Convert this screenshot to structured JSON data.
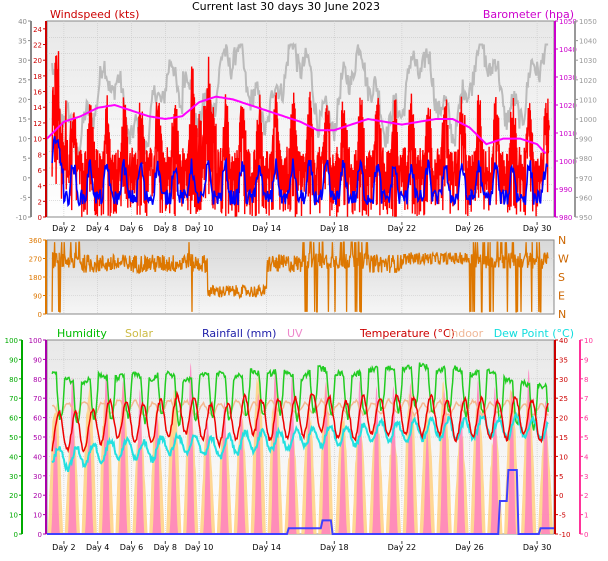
{
  "title": "Current last 30 days 30 June 2023",
  "colors": {
    "windspeed": "#ff0000",
    "gust": "#ff0000",
    "avgwind": "#0000ff",
    "barometer": "#ff00ff",
    "baro_bg_line": "#bbbbbb",
    "winddir": "#dd7700",
    "humidity": "#22cc22",
    "solar": "#ffd080",
    "rainfall": "#4040ff",
    "uv": "#ff80c0",
    "temperature": "#ee0000",
    "indoor": "#f4b890",
    "dewpoint": "#22e0e0",
    "axis_green": "#00aa00",
    "axis_orange": "#dd7700",
    "axis_pink": "#ff3399",
    "axis_red": "#cc0000",
    "axis_purple": "#aa00aa"
  },
  "chart_data": [
    {
      "type": "line",
      "name": "wind-baro",
      "series": [
        {
          "name": "Windspeed (kts)",
          "axis": "left"
        },
        {
          "name": "Barometer (hpa)",
          "axis": "right"
        }
      ],
      "left_axis": {
        "ylim": [
          0,
          25
        ],
        "ticks": [
          0,
          2,
          4,
          6,
          8,
          10,
          12,
          14,
          16,
          18,
          20,
          22,
          24
        ]
      },
      "left_axis2": {
        "ylim": [
          -10,
          40
        ],
        "ticks": [
          -10,
          -5,
          0,
          5,
          10,
          15,
          20,
          25,
          30,
          35,
          40
        ]
      },
      "right_axis": {
        "ylim": [
          980,
          1050
        ],
        "ticks": [
          980,
          990,
          1000,
          1010,
          1020,
          1030,
          1040,
          1050
        ]
      },
      "right_axis2": {
        "ylim": [
          950,
          1050
        ],
        "ticks": [
          950,
          960,
          970,
          980,
          990,
          1000,
          1010,
          1020,
          1030,
          1040,
          1050
        ]
      },
      "x_labels": [
        "Day 2",
        "Day 4",
        "Day 6",
        "Day 8",
        "Day 10",
        "Day 14",
        "Day 18",
        "Day 22",
        "Day 26",
        "Day 30"
      ],
      "x_days": [
        2,
        4,
        6,
        8,
        10,
        14,
        18,
        22,
        26,
        30
      ],
      "xlim": [
        1,
        31
      ],
      "barometer_points": [
        [
          1,
          1008
        ],
        [
          2,
          1014
        ],
        [
          3,
          1016
        ],
        [
          4,
          1019
        ],
        [
          5,
          1020
        ],
        [
          6,
          1018
        ],
        [
          7,
          1016
        ],
        [
          8,
          1015
        ],
        [
          9,
          1016
        ],
        [
          10,
          1021
        ],
        [
          11,
          1023
        ],
        [
          12,
          1022
        ],
        [
          13,
          1020
        ],
        [
          14,
          1018
        ],
        [
          15,
          1016
        ],
        [
          16,
          1014
        ],
        [
          17,
          1011
        ],
        [
          18,
          1011
        ],
        [
          19,
          1013
        ],
        [
          20,
          1015
        ],
        [
          21,
          1014
        ],
        [
          22,
          1013
        ],
        [
          23,
          1014
        ],
        [
          24,
          1015
        ],
        [
          25,
          1015
        ],
        [
          26,
          1012
        ],
        [
          27,
          1006
        ],
        [
          28,
          1008
        ],
        [
          29,
          1008
        ],
        [
          30,
          1006
        ],
        [
          30.6,
          1002
        ]
      ]
    },
    {
      "type": "scatter",
      "name": "wind-direction",
      "left_axis": {
        "ylim": [
          0,
          360
        ],
        "ticks": [
          0,
          90,
          180,
          270,
          360
        ]
      },
      "right_labels": [
        "N",
        "W",
        "S",
        "E",
        "N"
      ],
      "x_days": [
        2,
        4,
        6,
        8,
        10,
        14,
        18,
        22,
        26,
        30
      ],
      "xlim": [
        1,
        31
      ]
    },
    {
      "type": "line",
      "name": "temp-humidity",
      "series": [
        {
          "name": "Humidity",
          "axis": "left"
        },
        {
          "name": "Solar",
          "axis": "left"
        },
        {
          "name": "Rainfall (mm)",
          "axis": "left"
        },
        {
          "name": "UV",
          "axis": "right"
        },
        {
          "name": "Temperature (°C)",
          "axis": "right"
        },
        {
          "name": "Indoor",
          "axis": "right"
        },
        {
          "name": "Dew Point (°C)",
          "axis": "right"
        }
      ],
      "left_axis": {
        "ylim": [
          0,
          100
        ],
        "ticks": [
          0,
          10,
          20,
          30,
          40,
          50,
          60,
          70,
          80,
          90,
          100
        ]
      },
      "left_axis2": {
        "ylim": [
          0,
          100
        ],
        "ticks": [
          0,
          10,
          20,
          30,
          40,
          50,
          60,
          70,
          80,
          90,
          100
        ]
      },
      "left_axis3": {
        "ylim": [
          0,
          10
        ],
        "ticks": [
          0,
          1,
          2,
          3,
          4,
          5,
          6,
          7,
          8,
          9,
          10
        ]
      },
      "right_axis": {
        "ylim": [
          -10,
          40
        ],
        "ticks": [
          -10,
          -5,
          0,
          5,
          10,
          15,
          20,
          25,
          30,
          35,
          40
        ]
      },
      "right_axis2": {
        "ylim": [
          0,
          10
        ],
        "ticks": [
          0,
          1,
          2,
          3,
          4,
          5,
          6,
          7,
          8,
          9,
          10
        ]
      },
      "x_labels": [
        "Day 2",
        "Day 4",
        "Day 6",
        "Day 8",
        "Day 10",
        "Day 14",
        "Day 18",
        "Day 22",
        "Day 26",
        "Day 30"
      ],
      "x_days": [
        2,
        4,
        6,
        8,
        10,
        14,
        18,
        22,
        26,
        30
      ],
      "xlim": [
        1,
        31
      ],
      "humidity_daily": [
        [
          1,
          85
        ],
        [
          2,
          80
        ],
        [
          3,
          78
        ],
        [
          4,
          82
        ],
        [
          5,
          80
        ],
        [
          6,
          83
        ],
        [
          7,
          79
        ],
        [
          8,
          84
        ],
        [
          9,
          78
        ],
        [
          10,
          82
        ],
        [
          11,
          83
        ],
        [
          12,
          80
        ],
        [
          13,
          84
        ],
        [
          14,
          82
        ],
        [
          15,
          85
        ],
        [
          16,
          80
        ],
        [
          17,
          86
        ],
        [
          18,
          83
        ],
        [
          19,
          82
        ],
        [
          20,
          84
        ],
        [
          21,
          86
        ],
        [
          22,
          85
        ],
        [
          23,
          88
        ],
        [
          24,
          84
        ],
        [
          25,
          86
        ],
        [
          26,
          82
        ],
        [
          27,
          84
        ],
        [
          28,
          80
        ],
        [
          29,
          78
        ],
        [
          30,
          76
        ]
      ],
      "temperature_daily": [
        [
          1,
          17
        ],
        [
          2,
          19
        ],
        [
          3,
          18
        ],
        [
          4,
          20
        ],
        [
          5,
          22
        ],
        [
          6,
          21
        ],
        [
          7,
          20
        ],
        [
          8,
          22
        ],
        [
          9,
          23
        ],
        [
          10,
          22
        ],
        [
          11,
          20
        ],
        [
          12,
          21
        ],
        [
          13,
          23
        ],
        [
          14,
          21
        ],
        [
          15,
          22
        ],
        [
          16,
          22
        ],
        [
          17,
          24
        ],
        [
          18,
          22
        ],
        [
          19,
          21
        ],
        [
          20,
          23
        ],
        [
          21,
          22
        ],
        [
          22,
          23
        ],
        [
          23,
          22
        ],
        [
          24,
          23
        ],
        [
          25,
          21
        ],
        [
          26,
          22
        ],
        [
          27,
          22
        ],
        [
          28,
          21
        ],
        [
          29,
          23
        ],
        [
          30,
          21
        ]
      ],
      "dewpoint_daily": [
        [
          1,
          12
        ],
        [
          2,
          9
        ],
        [
          3,
          10
        ],
        [
          4,
          11
        ],
        [
          5,
          12
        ],
        [
          6,
          12
        ],
        [
          7,
          11
        ],
        [
          8,
          13
        ],
        [
          9,
          13
        ],
        [
          10,
          13
        ],
        [
          11,
          12
        ],
        [
          12,
          13
        ],
        [
          13,
          14
        ],
        [
          14,
          14
        ],
        [
          15,
          14
        ],
        [
          16,
          15
        ],
        [
          17,
          15
        ],
        [
          18,
          16
        ],
        [
          19,
          15
        ],
        [
          20,
          16
        ],
        [
          21,
          17
        ],
        [
          22,
          16
        ],
        [
          23,
          17
        ],
        [
          24,
          17
        ],
        [
          25,
          17
        ],
        [
          26,
          17
        ],
        [
          27,
          18
        ],
        [
          28,
          17
        ],
        [
          29,
          18
        ],
        [
          30,
          17
        ]
      ],
      "indoor_daily": [
        [
          1,
          22
        ],
        [
          2,
          22
        ],
        [
          3,
          23
        ],
        [
          4,
          22
        ],
        [
          5,
          23
        ],
        [
          6,
          23
        ],
        [
          7,
          22
        ],
        [
          8,
          23
        ],
        [
          9,
          23
        ],
        [
          10,
          22
        ],
        [
          11,
          22
        ],
        [
          12,
          23
        ],
        [
          13,
          22
        ],
        [
          14,
          23
        ],
        [
          15,
          23
        ],
        [
          16,
          22
        ],
        [
          17,
          23
        ],
        [
          18,
          22
        ],
        [
          19,
          23
        ],
        [
          20,
          22
        ],
        [
          21,
          23
        ],
        [
          22,
          23
        ],
        [
          23,
          22
        ],
        [
          24,
          23
        ],
        [
          25,
          22
        ],
        [
          26,
          23
        ],
        [
          27,
          22
        ],
        [
          28,
          23
        ],
        [
          29,
          22
        ],
        [
          30,
          22
        ]
      ],
      "rain_steps": [
        [
          1,
          0
        ],
        [
          15.2,
          0
        ],
        [
          15.3,
          0.3
        ],
        [
          17.2,
          0.3
        ],
        [
          17.3,
          0.7
        ],
        [
          17.8,
          0.7
        ],
        [
          17.9,
          0
        ],
        [
          27.7,
          0
        ],
        [
          27.8,
          1.7
        ],
        [
          28.2,
          1.7
        ],
        [
          28.3,
          3.3
        ],
        [
          28.8,
          3.3
        ],
        [
          28.9,
          0
        ],
        [
          30.1,
          0
        ],
        [
          30.2,
          0.3
        ],
        [
          31,
          0.3
        ]
      ]
    }
  ],
  "labels": {
    "windspeed": "Windspeed (kts)",
    "barometer": "Barometer (hpa)",
    "humidity": "Humidity",
    "solar": "Solar",
    "rainfall": "Rainfall (mm)",
    "uv": "UV",
    "temperature": "Temperature (°C)",
    "indoor": "Indoor",
    "dewpoint": "Dew Point (°C)"
  }
}
